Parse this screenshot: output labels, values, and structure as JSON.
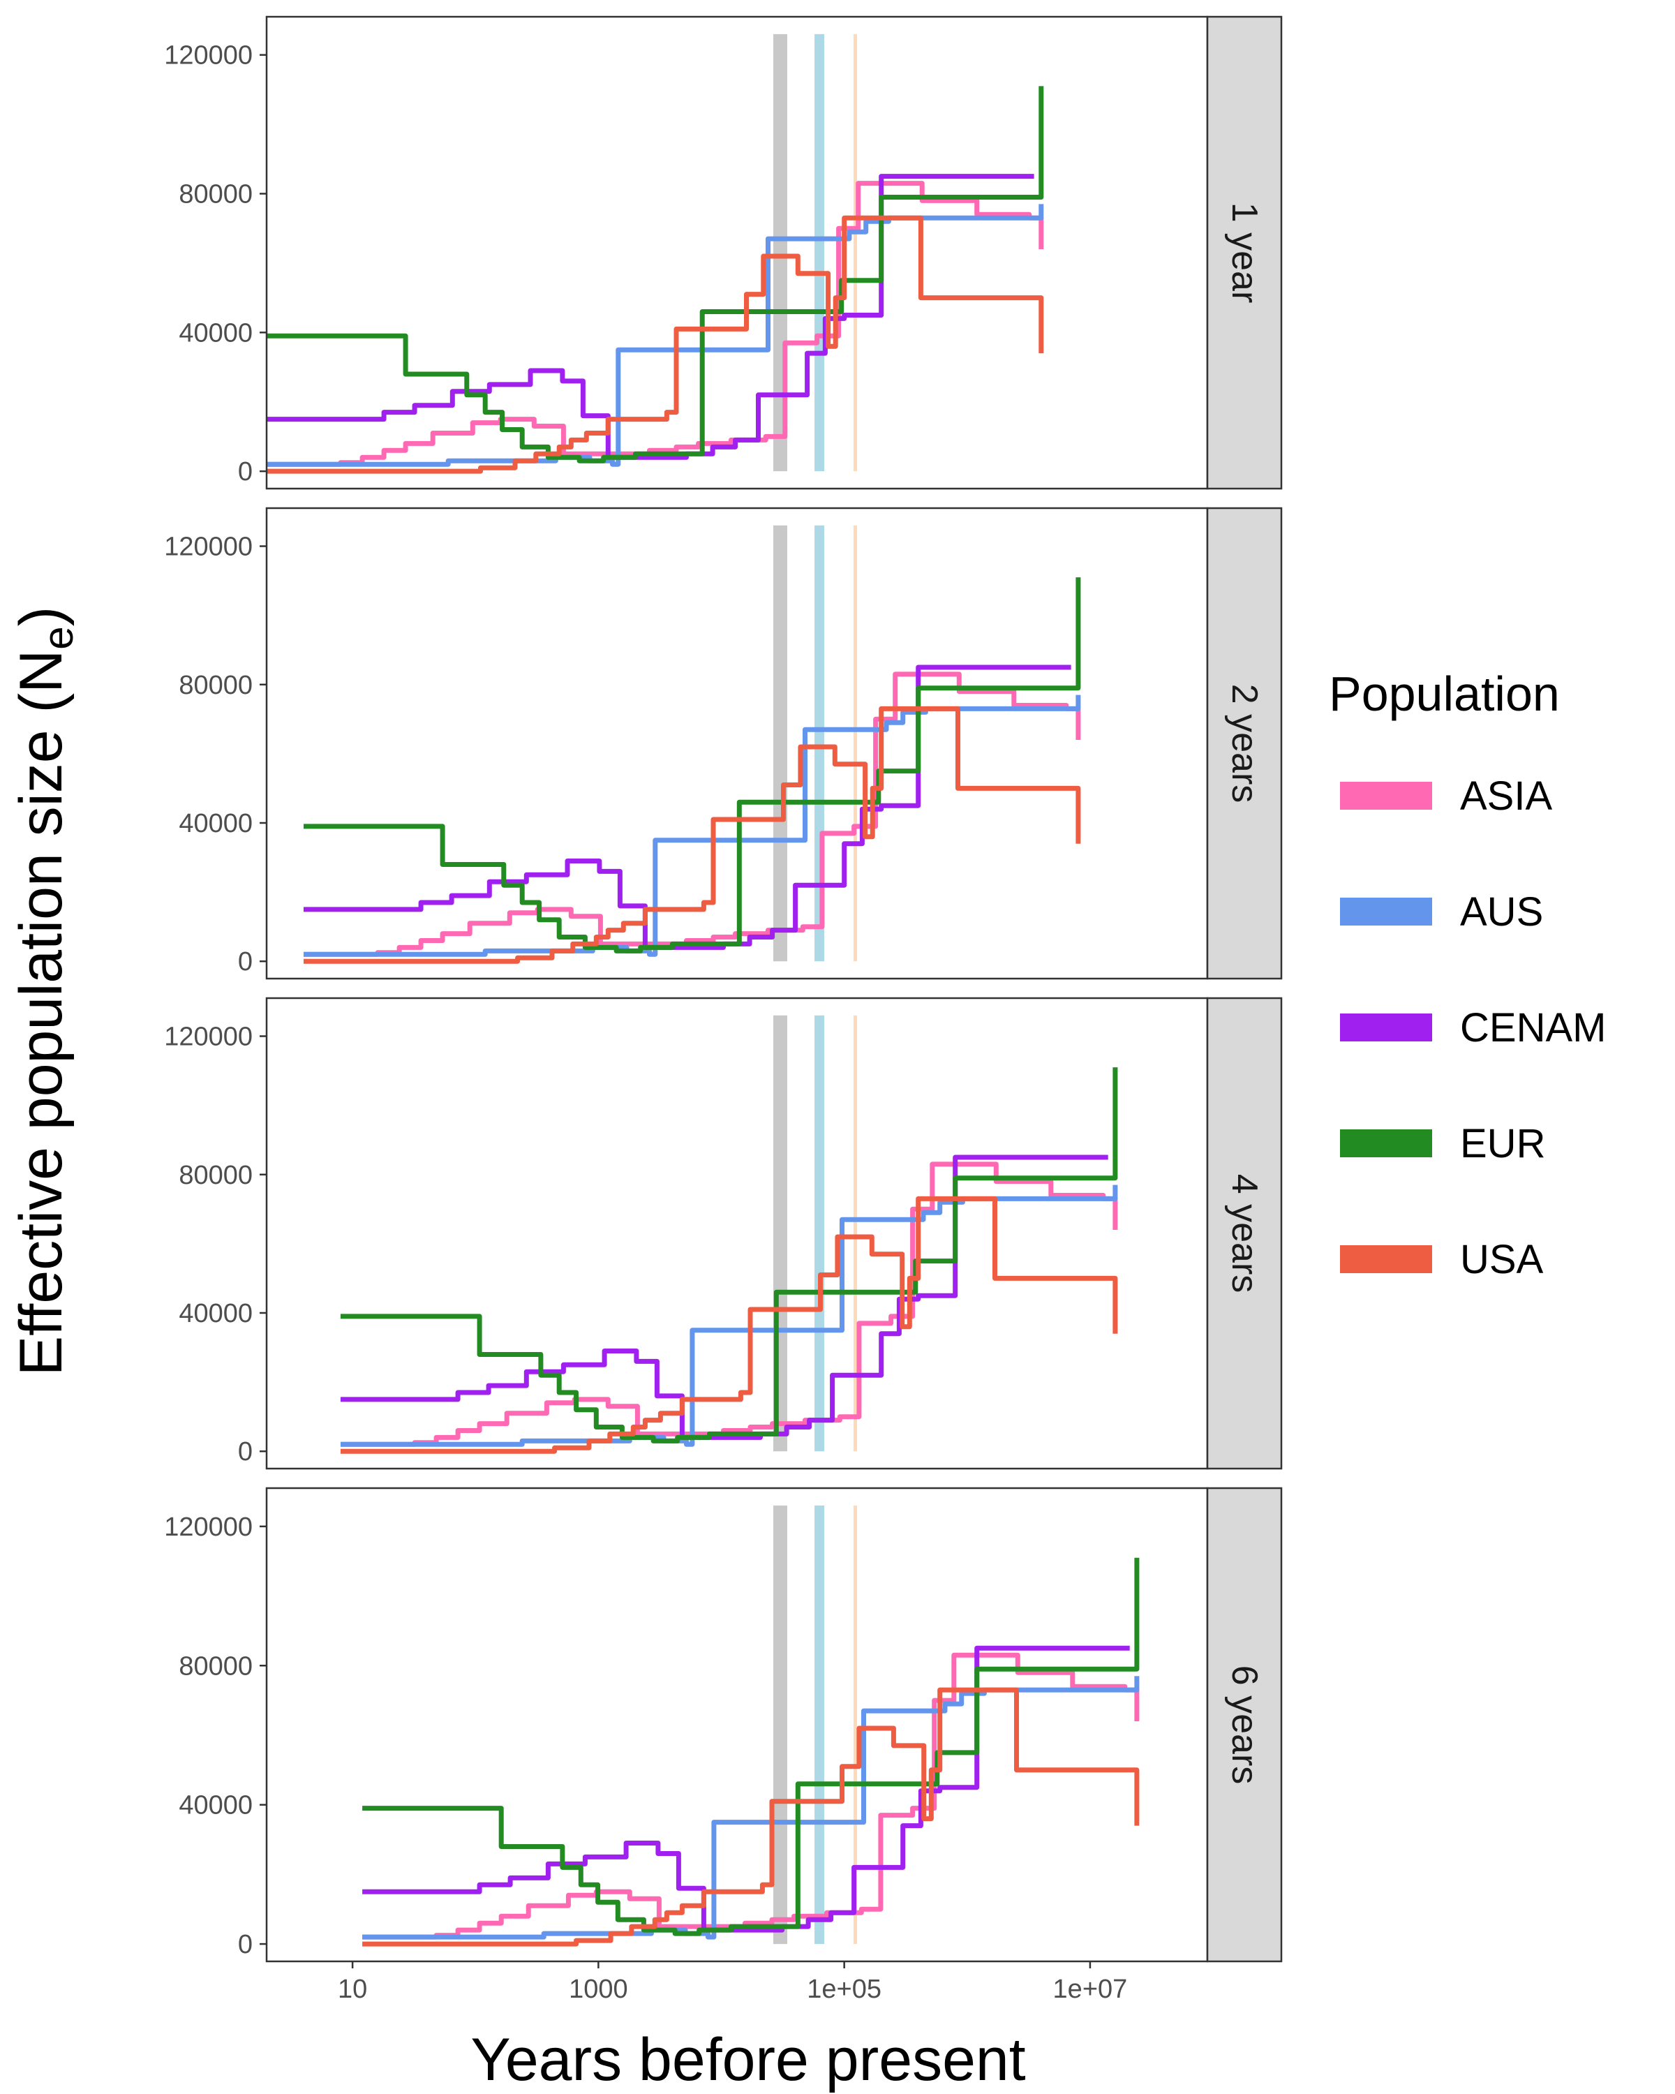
{
  "chart_data": {
    "type": "line",
    "xlabel": "Years before present",
    "ylabel_main": "Effective population size (N",
    "ylabel_sub": "e",
    "ylabel_close": ")",
    "x_scale": "log10",
    "xlim": [
      2,
      90000000
    ],
    "ylim": [
      -5000,
      131000
    ],
    "x_ticks": [
      10,
      1000,
      100000,
      10000000
    ],
    "x_tick_labels": [
      "10",
      "1000",
      "1e+05",
      "1e+07"
    ],
    "y_ticks": [
      0,
      40000,
      80000,
      120000
    ],
    "y_tick_labels": [
      "0",
      "40000",
      "80000",
      "120000"
    ],
    "grid": false,
    "facet_strip_side": "right",
    "legend": {
      "title": "Population",
      "position": "right",
      "entries": [
        {
          "name": "ASIA",
          "color": "#FF69B4"
        },
        {
          "name": "AUS",
          "color": "#6495ED"
        },
        {
          "name": "CENAM",
          "color": "#A020F0"
        },
        {
          "name": "EUR",
          "color": "#228B22"
        },
        {
          "name": "USA",
          "color": "#EE5C42"
        }
      ]
    },
    "reference_bands": [
      {
        "color": "#C8C8C8",
        "x_from": 26000,
        "x_to": 35000
      },
      {
        "color": "#ADD8E6",
        "x_from": 58000,
        "x_to": 68000
      },
      {
        "color": "#FFDAB9",
        "x_from": 120000,
        "x_to": 126000
      }
    ],
    "base_series": [
      {
        "name": "ASIA",
        "color": "#FF69B4",
        "x": [
          2,
          8,
          12,
          18,
          27,
          45,
          95,
          160,
          300,
          520,
          1300,
          2600,
          4300,
          6500,
          12000,
          23000,
          33000,
          60000,
          90000,
          130000,
          230000,
          430000,
          1200000,
          3200000,
          4000000
        ],
        "y": [
          2000,
          2500,
          4000,
          6000,
          8000,
          11000,
          14000,
          15000,
          13000,
          5000,
          5000,
          6000,
          7000,
          8000,
          9000,
          10000,
          37000,
          39000,
          70000,
          83000,
          83000,
          78000,
          74000,
          73000,
          64000
        ]
      },
      {
        "name": "AUS",
        "color": "#6495ED",
        "x": [
          2,
          35,
          60,
          140,
          450,
          850,
          1300,
          1450,
          5000,
          7500,
          13000,
          22000,
          24000,
          42000,
          75000,
          110000,
          150000,
          230000,
          350000,
          1200000,
          3200000,
          4000000
        ],
        "y": [
          2000,
          2000,
          3000,
          3000,
          4000,
          3000,
          2000,
          35000,
          35000,
          35000,
          35000,
          35000,
          67000,
          67000,
          67000,
          69000,
          72000,
          73000,
          73000,
          73000,
          73000,
          77000
        ]
      },
      {
        "name": "CENAM",
        "color": "#A020F0",
        "x": [
          2,
          9,
          18,
          32,
          65,
          130,
          280,
          510,
          750,
          1200,
          3000,
          5200,
          8500,
          13000,
          20000,
          50000,
          70000,
          100000,
          150000,
          200000,
          3500000
        ],
        "y": [
          15000,
          15000,
          17000,
          19000,
          23000,
          25000,
          29000,
          26000,
          16000,
          4000,
          4000,
          5000,
          7000,
          9000,
          22000,
          34000,
          44000,
          45000,
          45000,
          85000,
          85000
        ]
      },
      {
        "name": "EUR",
        "color": "#228B22",
        "x": [
          2,
          22,
          27,
          55,
          85,
          120,
          165,
          240,
          390,
          700,
          1100,
          2000,
          4500,
          6000,
          7000,
          18000,
          40000,
          72000,
          80000,
          95000,
          160000,
          200000,
          3500000,
          4000000
        ],
        "y": [
          39000,
          39000,
          28000,
          28000,
          22000,
          17000,
          12000,
          7000,
          4000,
          3000,
          4000,
          5000,
          5000,
          5000,
          46000,
          46000,
          46000,
          46000,
          46000,
          55000,
          55000,
          79000,
          79000,
          111000
        ]
      },
      {
        "name": "USA",
        "color": "#EE5C42",
        "x": [
          2,
          40,
          110,
          210,
          310,
          480,
          600,
          800,
          1200,
          2300,
          3600,
          4300,
          9000,
          16000,
          22000,
          28000,
          42000,
          46000,
          63000,
          74000,
          85000,
          100000,
          185000,
          310000,
          420000,
          3500000,
          4000000
        ],
        "y": [
          0,
          0,
          1000,
          3000,
          5000,
          7000,
          9000,
          11000,
          15000,
          15000,
          17000,
          41000,
          41000,
          51000,
          62000,
          62000,
          57000,
          57000,
          57000,
          36000,
          50000,
          73000,
          73000,
          73000,
          50000,
          50000,
          34000
        ]
      }
    ],
    "facets": [
      {
        "label": "1 year",
        "x_multiplier": 1
      },
      {
        "label": "2 years",
        "x_multiplier": 2
      },
      {
        "label": "4 years",
        "x_multiplier": 4
      },
      {
        "label": "6 years",
        "x_multiplier": 6
      }
    ]
  }
}
